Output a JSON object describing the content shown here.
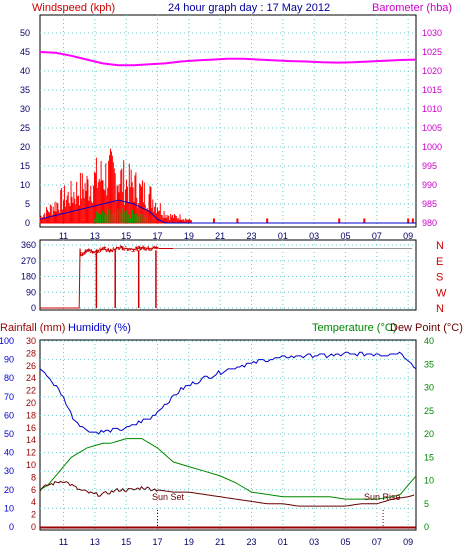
{
  "header": {
    "title": "24 hour graph day : 17 May 2012",
    "windspeed_label": "Windspeed (kph)",
    "barometer_label": "Barometer (hba)",
    "rainfall_label": "Rainfall (mm)",
    "humidity_label": "Humidity (%)",
    "temperature_label": "Temperature (°C)",
    "dewpoint_label": "Dew Point (°C)"
  },
  "colors": {
    "wind_gust": "#ff0000",
    "wind_avg": "#0000cc",
    "wind_dir": "#cc0000",
    "barometer": "#ff00ff",
    "barometer_axis": "#cc00cc",
    "humidity": "#0000cc",
    "temperature": "#008800",
    "dewpoint": "#660000",
    "rainfall": "#990000",
    "grid": "#66cccc",
    "axis_text": "#000066"
  },
  "x_axis": {
    "ticks": [
      "11",
      "13",
      "15",
      "17",
      "19",
      "21",
      "23",
      "01",
      "03",
      "05",
      "07",
      "09"
    ],
    "start_hour": 9.5,
    "end_hour": 33.5
  },
  "annotations": {
    "sunset_label": "Sun Set",
    "sunset_hour": 17.0,
    "sunrise_label": "Sun Rise",
    "sunrise_hour": 31.4
  },
  "chart_data": [
    {
      "type": "line",
      "title": "24 hour graph day : 17 May 2012",
      "ylabel": "Windspeed (kph)",
      "y2label": "Barometer (hba)",
      "ylim": [
        0,
        50
      ],
      "yticks": [
        "0",
        "5",
        "10",
        "15",
        "20",
        "25",
        "30",
        "35",
        "40",
        "45",
        "50"
      ],
      "y2lim": [
        980,
        1030
      ],
      "y2ticks": [
        "980",
        "985",
        "990",
        "995",
        "1000",
        "1005",
        "1010",
        "1015",
        "1020",
        "1025",
        "1030"
      ],
      "grid": true,
      "series": [
        {
          "name": "Windspeed (kph)",
          "role": "gust",
          "x": [
            9.5,
            10.0,
            10.5,
            11.0,
            11.5,
            12.0,
            12.5,
            13.0,
            13.5,
            14.0,
            14.5,
            15.0,
            15.5,
            16.0,
            16.5,
            17.0,
            17.5,
            18.0,
            18.5,
            19.0,
            20.5,
            22.0,
            28.5,
            30.0,
            33.0
          ],
          "y": [
            2,
            4,
            6,
            8,
            9,
            11,
            12,
            14,
            15,
            16,
            15,
            13,
            12,
            10,
            9,
            6,
            3,
            2,
            2,
            1,
            1,
            1,
            1,
            1,
            1
          ]
        },
        {
          "name": "Average wind",
          "role": "average",
          "x": [
            9.5,
            10.5,
            11.5,
            12.5,
            13.5,
            14.0,
            14.5,
            15.5,
            16.5,
            17.0,
            17.5,
            33.5
          ],
          "y": [
            1,
            2,
            3,
            4,
            5,
            5.5,
            6,
            5,
            3,
            1,
            0,
            0
          ]
        },
        {
          "name": "Barometer (hba)",
          "axis": "y2",
          "x": [
            9.5,
            10.5,
            11.5,
            12.5,
            13.5,
            14.5,
            15.5,
            16.5,
            17.5,
            18.5,
            19.5,
            20.5,
            21.5,
            22.5,
            23.5,
            24.5,
            25.5,
            26.5,
            27.5,
            28.5,
            29.5,
            30.5,
            31.5,
            32.5,
            33.5
          ],
          "y": [
            1025.0,
            1024.8,
            1024.0,
            1023.0,
            1022.0,
            1021.5,
            1021.5,
            1021.8,
            1022.0,
            1022.5,
            1022.8,
            1023.0,
            1023.2,
            1023.2,
            1023.0,
            1022.8,
            1022.6,
            1022.5,
            1022.3,
            1022.2,
            1022.3,
            1022.5,
            1022.7,
            1022.9,
            1023.0
          ]
        }
      ]
    },
    {
      "type": "line",
      "ylim": [
        0,
        360
      ],
      "yticks": [
        "0",
        "90",
        "180",
        "270",
        "360"
      ],
      "y2ticks": [
        "N",
        "W",
        "S",
        "E",
        "N"
      ],
      "grid": true,
      "series": [
        {
          "name": "Wind direction",
          "x": [
            9.5,
            12.0,
            12.05,
            12.1,
            12.5,
            13.0,
            13.5,
            14.0,
            14.5,
            15.0,
            15.5,
            16.0,
            16.5,
            17.0,
            17.1,
            18.0
          ],
          "y": [
            0,
            0,
            340,
            300,
            330,
            320,
            340,
            325,
            345,
            340,
            335,
            345,
            340,
            345,
            340,
            340
          ]
        }
      ]
    },
    {
      "type": "line",
      "ylabel": "Rainfall (mm) / Humidity (%)",
      "y2label": "Temperature (°C) / Dew Point (°C)",
      "ylim": [
        0,
        100
      ],
      "yticks": [
        "0",
        "10",
        "20",
        "30",
        "40",
        "50",
        "60",
        "70",
        "80",
        "90",
        "100"
      ],
      "rain_ticks": [
        "0",
        "2",
        "4",
        "6",
        "8",
        "10",
        "12",
        "14",
        "16",
        "18",
        "20",
        "22",
        "24",
        "26",
        "28",
        "30"
      ],
      "y2lim": [
        0,
        40
      ],
      "y2ticks": [
        "0",
        "5",
        "10",
        "15",
        "20",
        "25",
        "30",
        "35",
        "40"
      ],
      "grid": true,
      "series": [
        {
          "name": "Humidity (%)",
          "axis": "y",
          "x": [
            9.5,
            10.0,
            10.5,
            11.0,
            11.5,
            12.0,
            12.5,
            13.0,
            13.5,
            14.0,
            14.5,
            15.0,
            15.5,
            16.0,
            16.5,
            17.0,
            17.5,
            18.0,
            18.5,
            19.0,
            19.5,
            20.0,
            21.0,
            22.0,
            23.0,
            24.0,
            25.0,
            26.0,
            27.0,
            28.0,
            29.0,
            30.0,
            31.0,
            32.0,
            32.5,
            33.0,
            33.5
          ],
          "y": [
            85,
            81,
            76,
            70,
            60,
            55,
            52,
            51,
            51,
            52,
            52,
            53,
            55,
            57,
            58,
            62,
            66,
            70,
            74,
            76,
            78,
            80,
            83,
            86,
            88,
            90,
            91,
            92,
            92,
            92,
            93,
            93,
            93,
            93,
            94,
            90,
            85
          ]
        },
        {
          "name": "Temperature (°C)",
          "axis": "y2",
          "x": [
            9.5,
            10.0,
            10.5,
            11.0,
            11.5,
            12.0,
            12.5,
            13.0,
            13.5,
            14.0,
            14.5,
            15.0,
            15.5,
            16.0,
            16.5,
            17.0,
            17.5,
            18.0,
            19.0,
            20.0,
            21.0,
            22.0,
            22.5,
            23.0,
            24.0,
            25.0,
            26.0,
            27.0,
            28.0,
            29.0,
            30.0,
            31.0,
            32.0,
            32.5,
            33.0,
            33.5
          ],
          "y": [
            8,
            9,
            11,
            13,
            15,
            16,
            17,
            17.5,
            18,
            18,
            18.5,
            19,
            19,
            19,
            18,
            17,
            15.5,
            14,
            13,
            12,
            11,
            9.5,
            8.5,
            7.5,
            7,
            6.5,
            6.5,
            6.5,
            6.5,
            6,
            6,
            6,
            6.5,
            7,
            9,
            11
          ]
        },
        {
          "name": "Dew Point (°C)",
          "axis": "y2",
          "x": [
            9.5,
            10.0,
            10.5,
            11.0,
            11.5,
            12.0,
            12.5,
            13.0,
            13.5,
            14.0,
            14.5,
            15.0,
            15.5,
            16.0,
            17.0,
            18.0,
            19.0,
            20.0,
            21.0,
            22.0,
            23.0,
            24.0,
            25.0,
            26.0,
            27.0,
            28.0,
            29.0,
            30.0,
            31.0,
            32.0,
            33.0,
            33.5
          ],
          "y": [
            8,
            9,
            9.5,
            10,
            9,
            8,
            7.5,
            7,
            7,
            7.5,
            8,
            8,
            8,
            8.5,
            8,
            7.5,
            7.5,
            7,
            6.5,
            6,
            5.5,
            5,
            5,
            4.5,
            4.5,
            4.5,
            4.5,
            5,
            5,
            6,
            6.5,
            7
          ]
        },
        {
          "name": "Rainfall (mm)",
          "axis": "rain",
          "x": [
            9.5,
            33.5
          ],
          "y": [
            0,
            0
          ]
        }
      ]
    }
  ]
}
